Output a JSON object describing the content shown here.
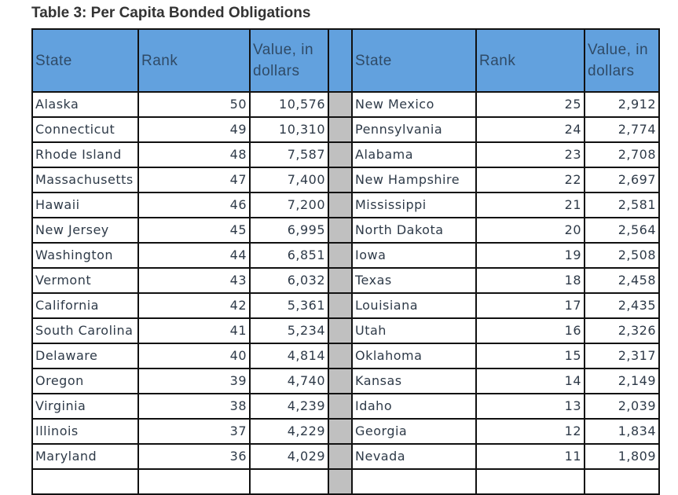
{
  "title": "Table 3: Per Capita Bonded Obligations",
  "table": {
    "headers": [
      "State",
      "Rank",
      "Value, in dollars",
      "State",
      "Rank",
      "Value, in dollars"
    ],
    "rows": [
      [
        "Alaska",
        50,
        "10,576",
        "New Mexico",
        25,
        "2,912"
      ],
      [
        "Connecticut",
        49,
        "10,310",
        "Pennsylvania",
        24,
        "2,774"
      ],
      [
        "Rhode Island",
        48,
        "7,587",
        "Alabama",
        23,
        "2,708"
      ],
      [
        "Massachusetts",
        47,
        "7,400",
        "New Hampshire",
        22,
        "2,697"
      ],
      [
        "Hawaii",
        46,
        "7,200",
        "Mississippi",
        21,
        "2,581"
      ],
      [
        "New Jersey",
        45,
        "6,995",
        "North Dakota",
        20,
        "2,564"
      ],
      [
        "Washington",
        44,
        "6,851",
        "Iowa",
        19,
        "2,508"
      ],
      [
        "Vermont",
        43,
        "6,032",
        "Texas",
        18,
        "2,458"
      ],
      [
        "California",
        42,
        "5,361",
        "Louisiana",
        17,
        "2,435"
      ],
      [
        "South Carolina",
        41,
        "5,234",
        "Utah",
        16,
        "2,326"
      ],
      [
        "Delaware",
        40,
        "4,814",
        "Oklahoma",
        15,
        "2,317"
      ],
      [
        "Oregon",
        39,
        "4,740",
        "Kansas",
        14,
        "2,149"
      ],
      [
        "Virginia",
        38,
        "4,239",
        "Idaho",
        13,
        "2,039"
      ],
      [
        "Illinois",
        37,
        "4,229",
        "Georgia",
        12,
        "1,834"
      ],
      [
        "Maryland",
        36,
        "4,029",
        "Nevada",
        11,
        "1,809"
      ]
    ]
  }
}
